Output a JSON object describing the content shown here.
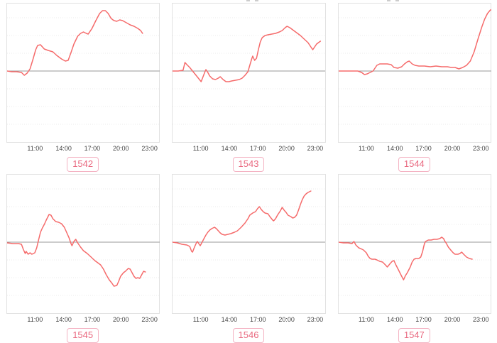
{
  "axis": {
    "xtick_labels": [
      "11:00",
      "14:00",
      "17:00",
      "20:00",
      "23:00"
    ],
    "xtick_hours": [
      11,
      14,
      17,
      20,
      23
    ],
    "xlim": [
      8,
      24
    ]
  },
  "style": {
    "line_color": "#f56b6b",
    "zero_line_color": "#9a9a9a",
    "grid_color": "#ebebeb",
    "frame_color": "#e2e2e2",
    "tick_label_color": "#454545",
    "badge_text_color": "#e9687f",
    "badge_border_color": "#f4b3c3",
    "background": "#ffffff"
  },
  "chart_data": [
    {
      "type": "line",
      "title": "1542",
      "xlabel": "",
      "ylabel": "",
      "xtick_labels": [
        "11:00",
        "14:00",
        "17:00",
        "20:00",
        "23:00"
      ],
      "xlim": [
        8,
        24
      ],
      "ylim": [
        -97,
        97
      ],
      "zero_baseline": true,
      "grid": true,
      "legend": "none",
      "clipped_title_fragments": [],
      "x": [
        8.0,
        8.5,
        9.0,
        9.5,
        9.8,
        10.1,
        10.4,
        10.7,
        11.0,
        11.2,
        11.5,
        11.9,
        12.3,
        12.8,
        13.2,
        13.7,
        14.1,
        14.4,
        14.7,
        15.0,
        15.4,
        15.7,
        16.0,
        16.3,
        16.5,
        16.9,
        17.3,
        17.7,
        18.0,
        18.3,
        18.6,
        18.9,
        19.2,
        19.5,
        19.8,
        20.1,
        20.5,
        20.9,
        21.3,
        21.7,
        22.0,
        22.2
      ],
      "y": [
        0,
        -1,
        -1,
        -2,
        -6,
        -3,
        3,
        16,
        30,
        36,
        37,
        31,
        29,
        27,
        22,
        17,
        14,
        15,
        26,
        38,
        49,
        53,
        55,
        53,
        52,
        60,
        71,
        81,
        85,
        85,
        81,
        74,
        71,
        70,
        72,
        71,
        68,
        65,
        63,
        60,
        57,
        53
      ]
    },
    {
      "type": "line",
      "title": "1543",
      "xlabel": "",
      "ylabel": "",
      "xtick_labels": [
        "11:00",
        "14:00",
        "17:00",
        "20:00",
        "23:00"
      ],
      "xlim": [
        8,
        24
      ],
      "ylim": [
        -97,
        97
      ],
      "zero_baseline": true,
      "grid": true,
      "legend": "none",
      "clipped_title_fragments": [
        114,
        126
      ],
      "x": [
        8.0,
        8.6,
        9.1,
        9.3,
        9.5,
        9.8,
        10.1,
        10.4,
        10.7,
        11.0,
        11.2,
        11.4,
        11.5,
        11.7,
        11.9,
        12.2,
        12.5,
        12.8,
        13.0,
        13.3,
        13.6,
        13.9,
        14.2,
        14.6,
        15.0,
        15.3,
        15.6,
        15.9,
        16.1,
        16.3,
        16.4,
        16.6,
        16.8,
        17.0,
        17.2,
        17.4,
        17.7,
        18.0,
        18.4,
        18.8,
        19.2,
        19.5,
        19.8,
        20.0,
        20.3,
        20.6,
        21.0,
        21.4,
        21.8,
        22.2,
        22.5,
        22.7,
        22.9,
        23.1,
        23.3,
        23.5
      ],
      "y": [
        0,
        0,
        1,
        12,
        9,
        5,
        0,
        -5,
        -10,
        -15,
        -8,
        -1,
        2,
        -2,
        -7,
        -11,
        -12,
        -10,
        -8,
        -12,
        -15,
        -15,
        -14,
        -13,
        -12,
        -10,
        -6,
        -1,
        8,
        17,
        21,
        15,
        18,
        30,
        41,
        47,
        50,
        51,
        52,
        53,
        55,
        57,
        61,
        63,
        61,
        58,
        54,
        50,
        45,
        40,
        34,
        30,
        34,
        38,
        40,
        42
      ]
    },
    {
      "type": "line",
      "title": "1544",
      "xlabel": "",
      "ylabel": "",
      "xtick_labels": [
        "11:00",
        "14:00",
        "17:00",
        "20:00",
        "23:00"
      ],
      "xlim": [
        8,
        24
      ],
      "ylim": [
        -97,
        97
      ],
      "zero_baseline": true,
      "grid": true,
      "legend": "none",
      "clipped_title_fragments": [
        78,
        90
      ],
      "x": [
        8.0,
        9.0,
        10.0,
        10.4,
        10.7,
        11.0,
        11.3,
        11.6,
        11.8,
        12.0,
        12.3,
        12.7,
        13.1,
        13.5,
        13.8,
        14.2,
        14.6,
        14.9,
        15.2,
        15.4,
        15.7,
        16.0,
        16.4,
        17.0,
        17.6,
        18.2,
        18.8,
        19.4,
        19.8,
        20.2,
        20.6,
        21.0,
        21.4,
        21.8,
        22.2,
        22.6,
        23.0,
        23.3,
        23.6,
        23.9,
        24.0
      ],
      "y": [
        0,
        0,
        0,
        -2,
        -5,
        -4,
        -2,
        0,
        4,
        8,
        10,
        10,
        10,
        9,
        5,
        4,
        6,
        10,
        13,
        14,
        10,
        8,
        7,
        7,
        6,
        7,
        6,
        6,
        5,
        5,
        3,
        5,
        8,
        14,
        27,
        45,
        62,
        73,
        81,
        86,
        86
      ]
    },
    {
      "type": "line",
      "title": "1545",
      "xlabel": "",
      "ylabel": "",
      "xtick_labels": [
        "11:00",
        "14:00",
        "17:00",
        "20:00",
        "23:00"
      ],
      "xlim": [
        8,
        24
      ],
      "ylim": [
        -97,
        97
      ],
      "zero_baseline": true,
      "grid": true,
      "legend": "none",
      "clipped_title_fragments": [],
      "x": [
        8.0,
        8.6,
        9.2,
        9.5,
        9.7,
        9.9,
        10.0,
        10.2,
        10.4,
        10.6,
        10.9,
        11.1,
        11.3,
        11.5,
        11.7,
        11.9,
        12.1,
        12.4,
        12.6,
        12.8,
        13.1,
        13.4,
        13.7,
        14.0,
        14.2,
        14.5,
        14.7,
        14.8,
        15.0,
        15.2,
        15.4,
        15.7,
        16.0,
        16.4,
        16.8,
        17.2,
        17.5,
        17.8,
        18.1,
        18.4,
        18.7,
        19.0,
        19.2,
        19.5,
        19.7,
        19.9,
        20.2,
        20.4,
        20.7,
        20.9,
        21.1,
        21.3,
        21.5,
        21.7,
        21.9,
        22.1,
        22.3,
        22.5
      ],
      "y": [
        -1,
        -2,
        -2,
        -3,
        -10,
        -16,
        -13,
        -17,
        -15,
        -17,
        -15,
        -8,
        3,
        14,
        20,
        25,
        31,
        39,
        38,
        33,
        29,
        28,
        26,
        21,
        15,
        6,
        -2,
        -5,
        1,
        4,
        -1,
        -7,
        -12,
        -16,
        -21,
        -26,
        -29,
        -32,
        -38,
        -46,
        -53,
        -58,
        -62,
        -61,
        -55,
        -48,
        -43,
        -41,
        -37,
        -38,
        -43,
        -48,
        -51,
        -50,
        -51,
        -46,
        -41,
        -42
      ]
    },
    {
      "type": "line",
      "title": "1546",
      "xlabel": "",
      "ylabel": "",
      "xtick_labels": [
        "11:00",
        "14:00",
        "17:00",
        "20:00",
        "23:00"
      ],
      "xlim": [
        8,
        24
      ],
      "ylim": [
        -97,
        97
      ],
      "zero_baseline": true,
      "grid": true,
      "legend": "none",
      "clipped_title_fragments": [],
      "x": [
        8.0,
        8.5,
        9.0,
        9.5,
        9.8,
        10.0,
        10.1,
        10.3,
        10.5,
        10.6,
        10.8,
        10.9,
        11.1,
        11.3,
        11.5,
        11.7,
        11.9,
        12.1,
        12.4,
        12.6,
        12.8,
        13.0,
        13.2,
        13.5,
        13.8,
        14.1,
        14.5,
        14.8,
        15.2,
        15.6,
        15.9,
        16.1,
        16.4,
        16.7,
        16.9,
        17.1,
        17.3,
        17.5,
        17.7,
        18.0,
        18.2,
        18.5,
        18.6,
        18.8,
        19.0,
        19.3,
        19.5,
        19.7,
        19.9,
        20.1,
        20.4,
        20.6,
        20.8,
        21.0,
        21.2,
        21.4,
        21.6,
        21.8,
        22.0,
        22.2,
        22.5
      ],
      "y": [
        0,
        -1,
        -3,
        -4,
        -6,
        -13,
        -14,
        -7,
        -1,
        1,
        -3,
        -5,
        0,
        5,
        10,
        14,
        17,
        19,
        21,
        19,
        16,
        13,
        11,
        10,
        11,
        12,
        14,
        16,
        21,
        27,
        33,
        38,
        41,
        43,
        47,
        50,
        46,
        43,
        41,
        40,
        36,
        31,
        30,
        33,
        38,
        44,
        49,
        45,
        42,
        38,
        36,
        34,
        35,
        38,
        45,
        53,
        60,
        65,
        68,
        70,
        72
      ]
    },
    {
      "type": "line",
      "title": "1547",
      "xlabel": "",
      "ylabel": "",
      "xtick_labels": [
        "11:00",
        "14:00",
        "17:00",
        "20:00",
        "23:00"
      ],
      "xlim": [
        8,
        24
      ],
      "ylim": [
        -97,
        97
      ],
      "zero_baseline": true,
      "grid": true,
      "legend": "none",
      "clipped_title_fragments": [],
      "x": [
        8.0,
        8.5,
        9.0,
        9.4,
        9.6,
        9.8,
        10.1,
        10.3,
        10.6,
        10.9,
        11.1,
        11.3,
        11.5,
        11.8,
        12.0,
        12.3,
        12.6,
        12.9,
        13.1,
        13.4,
        13.6,
        13.8,
        14.0,
        14.3,
        14.6,
        14.8,
        15.0,
        15.2,
        15.5,
        15.7,
        15.9,
        16.1,
        16.4,
        16.6,
        16.8,
        16.9,
        17.0,
        17.1,
        17.4,
        17.7,
        18.0,
        18.3,
        18.6,
        18.8,
        19.0,
        19.1,
        19.3,
        19.5,
        19.8,
        20.0,
        20.2,
        20.5,
        20.7,
        20.9,
        21.1,
        21.4,
        21.7,
        22.0
      ],
      "y": [
        0,
        -1,
        -1,
        -2,
        1,
        -4,
        -8,
        -9,
        -11,
        -15,
        -20,
        -23,
        -24,
        -24,
        -25,
        -27,
        -28,
        -32,
        -35,
        -30,
        -27,
        -26,
        -32,
        -40,
        -48,
        -53,
        -47,
        -43,
        -35,
        -28,
        -24,
        -23,
        -23,
        -21,
        -13,
        -7,
        -2,
        1,
        3,
        3,
        4,
        4,
        5,
        7,
        5,
        2,
        -2,
        -7,
        -12,
        -15,
        -17,
        -17,
        -16,
        -14,
        -17,
        -21,
        -23,
        -24
      ]
    }
  ]
}
